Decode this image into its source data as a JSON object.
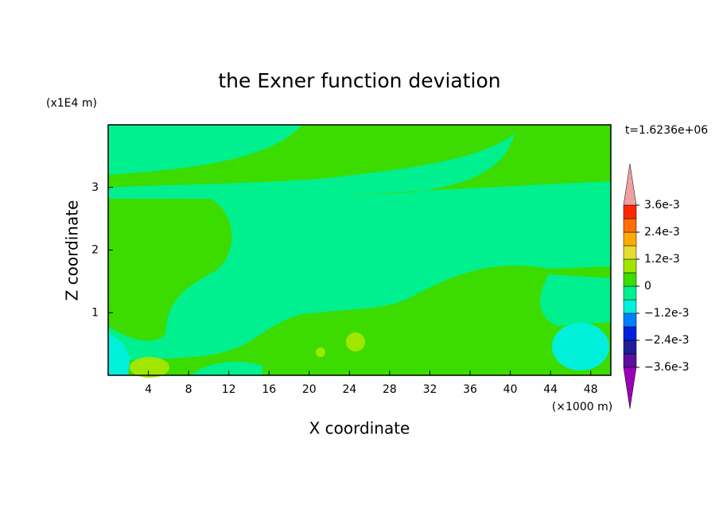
{
  "chart_data": {
    "type": "contour",
    "title": "the Exner function deviation",
    "xlabel": "X coordinate",
    "ylabel": "Z coordinate",
    "x_unit": "(×1000 m)",
    "y_unit": "(x1E4 m)",
    "annotation": "t=1.6236e+06",
    "xlim": [
      0,
      50
    ],
    "ylim": [
      0,
      4
    ],
    "xticks": [
      4,
      8,
      12,
      16,
      20,
      24,
      28,
      32,
      36,
      40,
      44,
      48
    ],
    "yticks": [
      1,
      2,
      3
    ],
    "levels": [
      -0.0036,
      -0.003,
      -0.0024,
      -0.0018,
      -0.0012,
      -0.0006,
      0,
      0.0006,
      0.0012,
      0.0018,
      0.0024,
      0.003,
      0.0036
    ],
    "colors": [
      "#9a00b8",
      "#5a0fa0",
      "#1e1e96",
      "#0020e0",
      "#0080ff",
      "#00f0dc",
      "#00f090",
      "#3cdc00",
      "#a0e600",
      "#e6dc32",
      "#ffaa00",
      "#ff6e00",
      "#ff2800",
      "#f0a0a0"
    ],
    "colorbar_ticks": [
      {
        "value": 0.0036,
        "label": "3.6e-3"
      },
      {
        "value": 0.0024,
        "label": "2.4e-3"
      },
      {
        "value": 0.0012,
        "label": "1.2e-3"
      },
      0,
      {
        "value": -0.0012,
        "label": "−1.2e-3"
      },
      {
        "value": -0.0024,
        "label": "−2.4e-3"
      },
      {
        "value": -0.0036,
        "label": "−3.6e-3"
      }
    ]
  }
}
